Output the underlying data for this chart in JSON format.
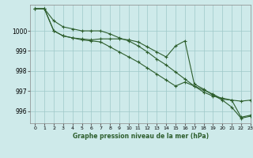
{
  "title": "Graphe pression niveau de la mer (hPa)",
  "background_color": "#ceeaea",
  "grid_color": "#9ec8c8",
  "line_color": "#2d5e2d",
  "xlim": [
    -0.5,
    23
  ],
  "ylim": [
    995.4,
    1001.3
  ],
  "yticks": [
    996,
    997,
    998,
    999,
    1000
  ],
  "xticks": [
    0,
    1,
    2,
    3,
    4,
    5,
    6,
    7,
    8,
    9,
    10,
    11,
    12,
    13,
    14,
    15,
    16,
    17,
    18,
    19,
    20,
    21,
    22,
    23
  ],
  "series1": [
    1001.1,
    1001.1,
    1000.5,
    1000.2,
    1000.1,
    1000.0,
    1000.0,
    1000.0,
    999.85,
    999.65,
    999.5,
    999.25,
    998.95,
    998.6,
    998.3,
    997.95,
    997.6,
    997.25,
    996.95,
    996.75,
    996.65,
    996.55,
    996.5,
    996.55
  ],
  "series2": [
    1001.1,
    1001.1,
    1000.0,
    999.75,
    999.65,
    999.6,
    999.55,
    999.6,
    999.6,
    999.6,
    999.55,
    999.45,
    999.2,
    998.95,
    998.7,
    999.25,
    999.5,
    997.35,
    997.1,
    996.8,
    996.55,
    996.2,
    995.65,
    995.75
  ],
  "series3": [
    1001.1,
    1001.1,
    1000.0,
    999.75,
    999.65,
    999.55,
    999.5,
    999.45,
    999.2,
    998.95,
    998.7,
    998.45,
    998.15,
    997.85,
    997.55,
    997.25,
    997.45,
    997.25,
    997.05,
    996.85,
    996.6,
    996.55,
    995.7,
    995.8
  ]
}
